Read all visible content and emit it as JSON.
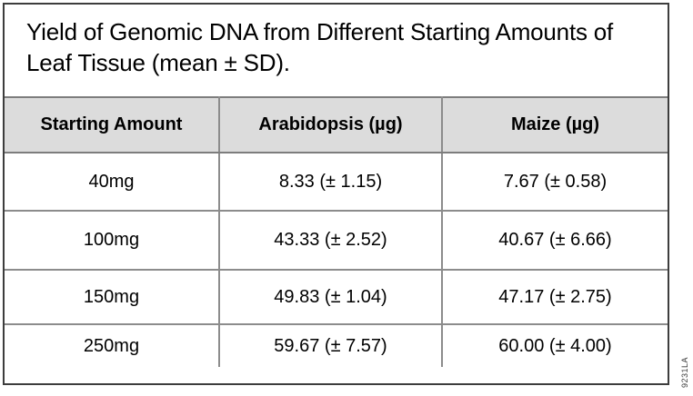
{
  "figure": {
    "title": "Yield of Genomic DNA from Different Starting Amounts of Leaf Tissue (mean ± SD).",
    "side_label": "9231LA"
  },
  "table": {
    "columns": [
      "Starting Amount",
      "Arabidopsis (µg)",
      "Maize (µg)"
    ],
    "rows": [
      [
        "40mg",
        "8.33 (± 1.15)",
        "7.67 (± 0.58)"
      ],
      [
        "100mg",
        "43.33 (± 2.52)",
        "40.67 (± 6.66)"
      ],
      [
        "150mg",
        "49.83 (± 1.04)",
        "47.17 (± 2.75)"
      ],
      [
        "250mg",
        "59.67 (± 7.57)",
        "60.00 (± 4.00)"
      ]
    ]
  },
  "colors": {
    "header_bg": "#dcdcdc",
    "outer_border": "#3d3d3d",
    "inner_border": "#8c8c8c"
  }
}
